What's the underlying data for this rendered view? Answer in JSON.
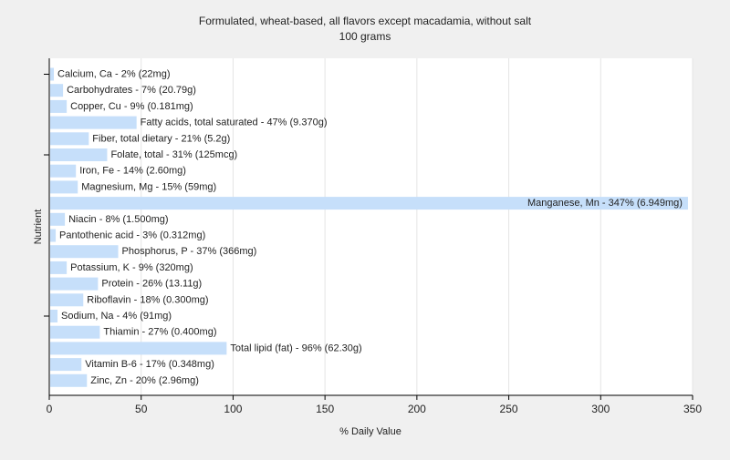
{
  "chart_data": {
    "type": "bar",
    "orientation": "horizontal",
    "title": "Formulated, wheat-based, all flavors except macadamia, without salt",
    "subtitle": "100 grams",
    "xlabel": "% Daily Value",
    "ylabel": "Nutrient",
    "xlim": [
      0,
      350
    ],
    "xticks": [
      0,
      50,
      100,
      150,
      200,
      250,
      300,
      350
    ],
    "grid": true,
    "bar_color": "#c6dffa",
    "background_color": "#f0f0f0",
    "plot_background_color": "#ffffff",
    "categories": [
      "Calcium, Ca - 2% (22mg)",
      "Carbohydrates - 7% (20.79g)",
      "Copper, Cu - 9% (0.181mg)",
      "Fatty acids, total saturated - 47% (9.370g)",
      "Fiber, total dietary - 21% (5.2g)",
      "Folate, total - 31% (125mcg)",
      "Iron, Fe - 14% (2.60mg)",
      "Magnesium, Mg - 15% (59mg)",
      "Manganese, Mn - 347% (6.949mg)",
      "Niacin - 8% (1.500mg)",
      "Pantothenic acid - 3% (0.312mg)",
      "Phosphorus, P - 37% (366mg)",
      "Potassium, K - 9% (320mg)",
      "Protein - 26% (13.11g)",
      "Riboflavin - 18% (0.300mg)",
      "Sodium, Na - 4% (91mg)",
      "Thiamin - 27% (0.400mg)",
      "Total lipid (fat) - 96% (62.30g)",
      "Vitamin B-6 - 17% (0.348mg)",
      "Zinc, Zn - 20% (2.96mg)"
    ],
    "values": [
      2,
      7,
      9,
      47,
      21,
      31,
      14,
      15,
      347,
      8,
      3,
      37,
      9,
      26,
      18,
      4,
      27,
      96,
      17,
      20
    ]
  }
}
